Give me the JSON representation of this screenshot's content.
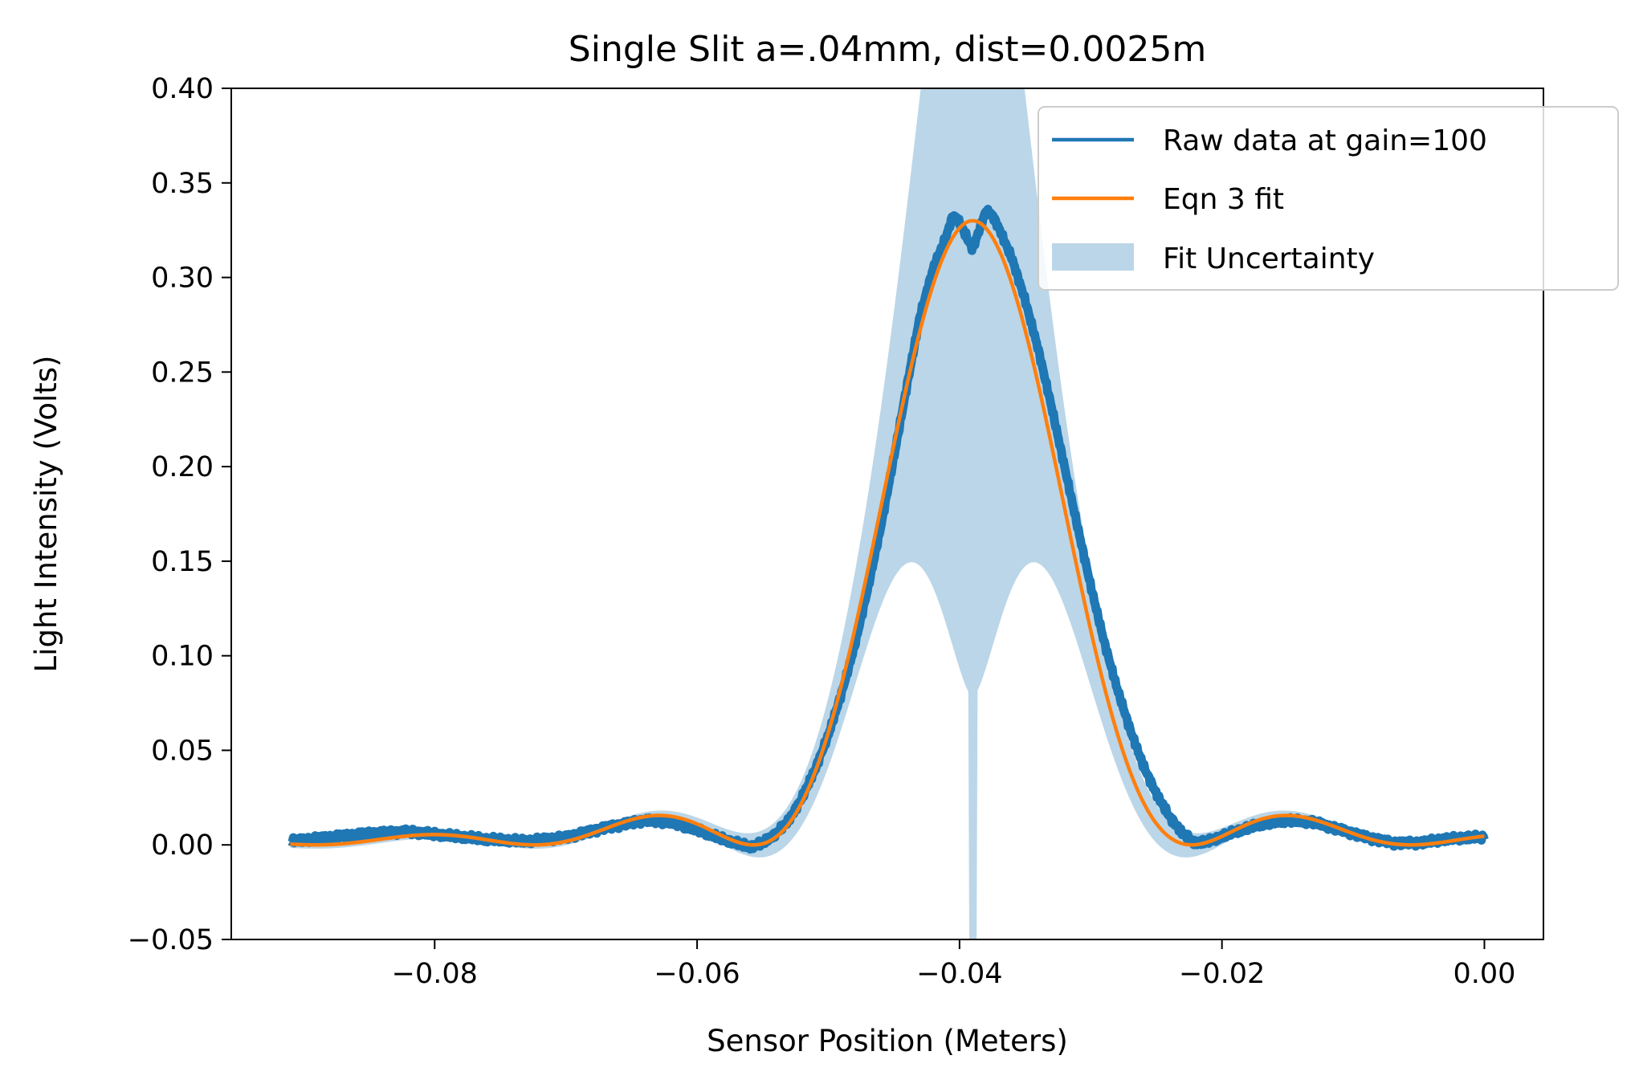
{
  "chart_data": {
    "type": "line",
    "title": "Single Slit a=.04mm, dist=0.0025m",
    "xlabel": "Sensor Position (Meters)",
    "ylabel": "Light Intensity (Volts)",
    "xlim": [
      -0.0955,
      0.0045
    ],
    "ylim": [
      -0.05,
      0.4
    ],
    "xticks": [
      -0.08,
      -0.06,
      -0.04,
      -0.02,
      0.0
    ],
    "xtick_labels": [
      "−0.08",
      "−0.06",
      "−0.04",
      "−0.02",
      "0.00"
    ],
    "yticks": [
      -0.05,
      0.0,
      0.05,
      0.1,
      0.15,
      0.2,
      0.25,
      0.3,
      0.35,
      0.4
    ],
    "ytick_labels": [
      "−0.05",
      "0.00",
      "0.05",
      "0.10",
      "0.15",
      "0.20",
      "0.25",
      "0.30",
      "0.35",
      "0.40"
    ],
    "grid": false,
    "legend_position": "top-right",
    "series": [
      {
        "name": "Raw data at gain=100",
        "kind": "line",
        "color": "#1f77b4",
        "x": [
          -0.091,
          -0.088,
          -0.085,
          -0.082,
          -0.079,
          -0.076,
          -0.073,
          -0.07,
          -0.067,
          -0.064,
          -0.062,
          -0.06,
          -0.058,
          -0.056,
          -0.055,
          -0.054,
          -0.053,
          -0.052,
          -0.051,
          -0.05,
          -0.049,
          -0.048,
          -0.047,
          -0.046,
          -0.045,
          -0.044,
          -0.043,
          -0.042,
          -0.041,
          -0.0405,
          -0.04,
          -0.0395,
          -0.039,
          -0.0385,
          -0.038,
          -0.0375,
          -0.037,
          -0.036,
          -0.035,
          -0.034,
          -0.033,
          -0.032,
          -0.031,
          -0.03,
          -0.029,
          -0.028,
          -0.027,
          -0.026,
          -0.025,
          -0.024,
          -0.023,
          -0.022,
          -0.021,
          -0.019,
          -0.017,
          -0.015,
          -0.013,
          -0.011,
          -0.009,
          -0.007,
          -0.005,
          -0.003,
          -0.001,
          0.0
        ],
        "y": [
          0.002,
          0.004,
          0.006,
          0.007,
          0.005,
          0.003,
          0.002,
          0.004,
          0.009,
          0.013,
          0.012,
          0.008,
          0.003,
          -0.001,
          0.001,
          0.006,
          0.013,
          0.025,
          0.04,
          0.058,
          0.08,
          0.105,
          0.135,
          0.168,
          0.205,
          0.243,
          0.28,
          0.305,
          0.322,
          0.333,
          0.329,
          0.322,
          0.315,
          0.325,
          0.335,
          0.333,
          0.326,
          0.31,
          0.288,
          0.262,
          0.232,
          0.2,
          0.168,
          0.137,
          0.108,
          0.083,
          0.061,
          0.042,
          0.027,
          0.015,
          0.006,
          0.001,
          0.002,
          0.007,
          0.011,
          0.013,
          0.012,
          0.008,
          0.004,
          0.001,
          0.001,
          0.003,
          0.004,
          0.004
        ]
      },
      {
        "name": "Eqn 3 fit",
        "kind": "line",
        "color": "#ff7f0e",
        "model": "sinc-squared",
        "peak_x": -0.039,
        "peak_y": 0.33,
        "first_zero_offset": 0.0167,
        "baseline": 0.0
      },
      {
        "name": "Fit Uncertainty",
        "kind": "band",
        "color": "#1f77b4",
        "opacity": 0.3
      }
    ]
  }
}
